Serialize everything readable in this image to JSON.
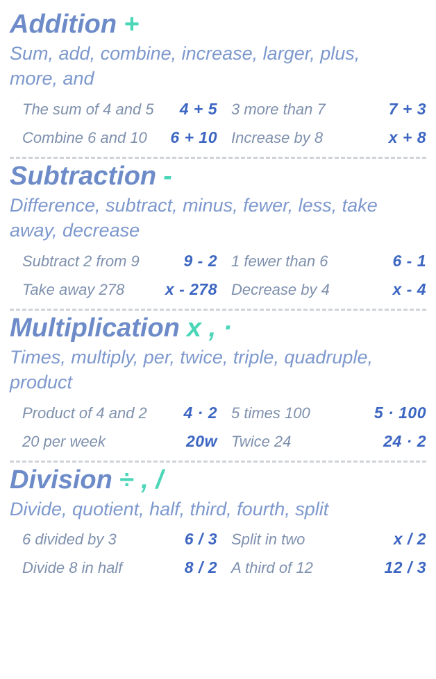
{
  "colors": {
    "heading": "#6d8bc8",
    "symbol": "#4cd6b8",
    "keywords": "#7d98cd",
    "phrase": "#7e90ad",
    "expr": "#3d66c2",
    "divider": "#cfd3d7",
    "background": "#ffffff"
  },
  "typography": {
    "font_family": "Segoe Script, Comic Sans MS, cursive",
    "font_style": "italic",
    "heading_size_pt": 29,
    "keywords_size_pt": 20,
    "phrase_size_pt": 17,
    "expr_size_pt": 17
  },
  "sections": [
    {
      "name": "Addition",
      "symbol": "+",
      "keywords": "Sum, add, combine, increase, larger, plus, more, and",
      "examples": [
        {
          "phrase": "The sum of 4 and 5",
          "expr": "4 + 5"
        },
        {
          "phrase": "3 more than 7",
          "expr": "7 + 3"
        },
        {
          "phrase": "Combine 6 and 10",
          "expr": "6 + 10"
        },
        {
          "phrase": "Increase by 8",
          "expr": "x + 8"
        }
      ]
    },
    {
      "name": "Subtraction",
      "symbol": "-",
      "keywords": "Difference, subtract, minus, fewer, less, take away, decrease",
      "examples": [
        {
          "phrase": "Subtract 2 from 9",
          "expr": "9 - 2"
        },
        {
          "phrase": "1 fewer than 6",
          "expr": "6 - 1"
        },
        {
          "phrase": "Take away 278",
          "expr": "x - 278"
        },
        {
          "phrase": "Decrease by 4",
          "expr": "x - 4"
        }
      ]
    },
    {
      "name": "Multiplication",
      "symbol": "x , ·",
      "keywords": "Times, multiply, per, twice, triple, quadruple, product",
      "examples": [
        {
          "phrase": "Product of 4 and 2",
          "expr": "4 · 2"
        },
        {
          "phrase": "5 times 100",
          "expr": "5 · 100"
        },
        {
          "phrase": "20 per week",
          "expr": "20w"
        },
        {
          "phrase": "Twice 24",
          "expr": "24 · 2"
        }
      ]
    },
    {
      "name": "Division",
      "symbol": "÷ , /",
      "keywords": "Divide, quotient, half, third, fourth, split",
      "examples": [
        {
          "phrase": "6 divided by 3",
          "expr": "6 / 3"
        },
        {
          "phrase": "Split in two",
          "expr": "x / 2"
        },
        {
          "phrase": "Divide 8 in half",
          "expr": "8 / 2"
        },
        {
          "phrase": "A third of 12",
          "expr": "12 / 3"
        }
      ]
    }
  ]
}
